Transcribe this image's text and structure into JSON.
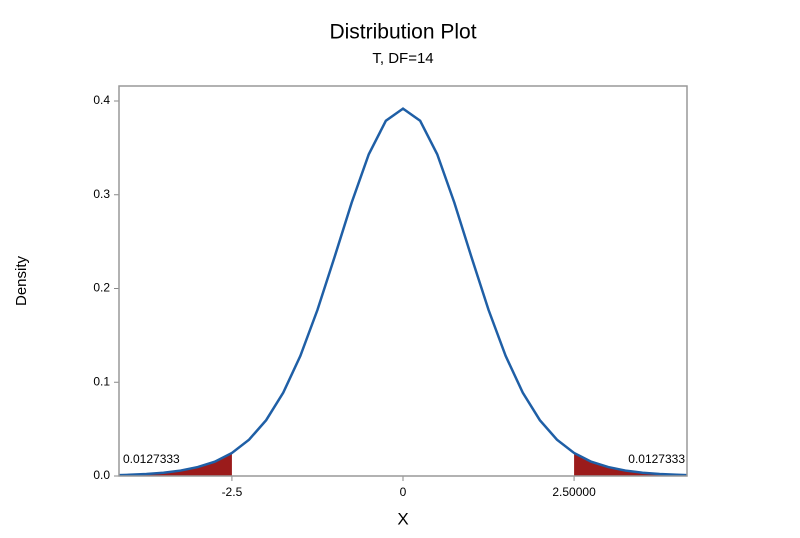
{
  "chart_data": {
    "type": "line",
    "title": "Distribution Plot",
    "subtitle": "T, DF=14",
    "x_label": "X",
    "y_label": "Density",
    "x": [
      -4.15,
      -4.0,
      -3.75,
      -3.5,
      -3.25,
      -3.0,
      -2.75,
      -2.5,
      -2.25,
      -2.0,
      -1.75,
      -1.5,
      -1.25,
      -1.0,
      -0.75,
      -0.5,
      -0.25,
      0,
      0.25,
      0.5,
      0.75,
      1.0,
      1.25,
      1.5,
      1.75,
      2.0,
      2.25,
      2.5,
      2.75,
      3.0,
      3.25,
      3.5,
      3.75,
      4.0,
      4.15
    ],
    "series": [
      {
        "color": "#1f5fa6",
        "values": [
          0.001,
          0.0013,
          0.0021,
          0.0035,
          0.0058,
          0.0095,
          0.0152,
          0.0246,
          0.0387,
          0.0595,
          0.0889,
          0.1281,
          0.1772,
          0.2336,
          0.2916,
          0.3432,
          0.379,
          0.3919,
          0.379,
          0.3432,
          0.2916,
          0.2336,
          0.1772,
          0.1281,
          0.0889,
          0.0595,
          0.0387,
          0.0246,
          0.0152,
          0.0095,
          0.0058,
          0.0035,
          0.0021,
          0.0013,
          0.001
        ]
      }
    ],
    "shaded_regions": [
      {
        "x_range": [
          -4.15,
          -2.5
        ],
        "area": 0.0127333,
        "color": "#9b1b1b"
      },
      {
        "x_range": [
          2.5,
          4.15
        ],
        "area": 0.0127333,
        "color": "#9b1b1b"
      }
    ],
    "xlim": [
      -4.15,
      4.15
    ],
    "ylim": [
      0,
      0.416
    ],
    "xticks": [
      -2.5,
      0,
      {
        "value": 2.5,
        "label": "2.50000"
      }
    ],
    "yticks": [
      {
        "value": 0,
        "label": "0.0"
      },
      0.1,
      0.2,
      0.3,
      0.4
    ]
  }
}
